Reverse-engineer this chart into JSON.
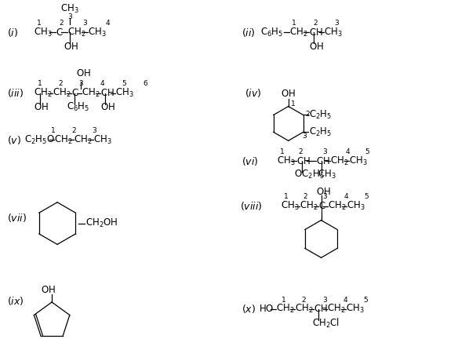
{
  "background_color": "#ffffff",
  "figsize": [
    6.07,
    4.46
  ],
  "dpi": 100
}
